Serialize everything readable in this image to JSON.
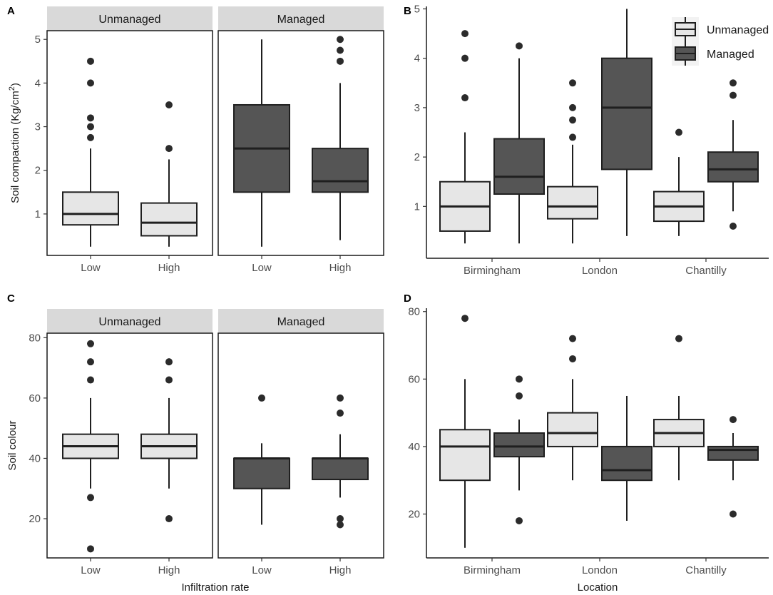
{
  "chart_data": [
    {
      "id": "A",
      "type": "box",
      "panel_tag": "A",
      "ylabel": "Soil compaction (Kg/cm",
      "ylabel_sup": "2",
      "ylabel_close": ")",
      "ylim": [
        0.05,
        5.2
      ],
      "yticks": [
        1,
        2,
        3,
        4,
        5
      ],
      "xlabel": "",
      "facets": [
        {
          "label": "Unmanaged",
          "fill": "#e6e6e6",
          "categories": [
            "Low",
            "High"
          ],
          "boxes": [
            {
              "q1": 0.75,
              "median": 1.0,
              "q3": 1.5,
              "lo": 0.25,
              "hi": 2.5,
              "outliers": [
                2.75,
                3.0,
                3.2,
                4.0,
                4.5
              ]
            },
            {
              "q1": 0.5,
              "median": 0.8,
              "q3": 1.25,
              "lo": 0.25,
              "hi": 2.25,
              "outliers": [
                2.5,
                3.5
              ]
            }
          ]
        },
        {
          "label": "Managed",
          "fill": "#555555",
          "categories": [
            "Low",
            "High"
          ],
          "boxes": [
            {
              "q1": 1.5,
              "median": 2.5,
              "q3": 3.5,
              "lo": 0.25,
              "hi": 5.0,
              "outliers": []
            },
            {
              "q1": 1.5,
              "median": 1.75,
              "q3": 2.5,
              "lo": 0.4,
              "hi": 4.0,
              "outliers": [
                4.5,
                4.75,
                5.0
              ]
            }
          ]
        }
      ]
    },
    {
      "id": "B",
      "type": "box",
      "panel_tag": "B",
      "ylabel": "",
      "ylim": [
        -0.05,
        5.05
      ],
      "yticks": [
        1,
        2,
        3,
        4,
        5
      ],
      "xlabel": "",
      "categories": [
        "Birmingham",
        "London",
        "Chantilly"
      ],
      "series": [
        {
          "name": "Unmanaged",
          "fill": "#e6e6e6",
          "boxes": [
            {
              "q1": 0.5,
              "median": 1.0,
              "q3": 1.5,
              "lo": 0.25,
              "hi": 2.5,
              "outliers": [
                3.2,
                4.0,
                4.5
              ]
            },
            {
              "q1": 0.75,
              "median": 1.0,
              "q3": 1.4,
              "lo": 0.25,
              "hi": 2.25,
              "outliers": [
                2.4,
                2.75,
                3.0,
                3.5
              ]
            },
            {
              "q1": 0.7,
              "median": 1.0,
              "q3": 1.3,
              "lo": 0.4,
              "hi": 2.0,
              "outliers": [
                2.5
              ]
            }
          ]
        },
        {
          "name": "Managed",
          "fill": "#555555",
          "boxes": [
            {
              "q1": 1.25,
              "median": 1.6,
              "q3": 2.37,
              "lo": 0.25,
              "hi": 4.0,
              "outliers": [
                4.25
              ]
            },
            {
              "q1": 1.75,
              "median": 3.0,
              "q3": 4.0,
              "lo": 0.4,
              "hi": 5.0,
              "outliers": []
            },
            {
              "q1": 1.5,
              "median": 1.75,
              "q3": 2.1,
              "lo": 0.9,
              "hi": 2.75,
              "outliers": [
                0.6,
                3.25,
                3.5
              ]
            }
          ]
        }
      ],
      "legend": [
        "Unmanaged",
        "Managed"
      ],
      "legend_position": "top-right"
    },
    {
      "id": "C",
      "type": "box",
      "panel_tag": "C",
      "ylabel": "Soil colour",
      "ylim": [
        7,
        81.5
      ],
      "yticks": [
        20,
        40,
        60,
        80
      ],
      "xlabel": "Infiltration rate",
      "facets": [
        {
          "label": "Unmanaged",
          "fill": "#e6e6e6",
          "categories": [
            "Low",
            "High"
          ],
          "boxes": [
            {
              "q1": 40,
              "median": 44,
              "q3": 48,
              "lo": 30,
              "hi": 60,
              "outliers": [
                10,
                27,
                66,
                72,
                78
              ]
            },
            {
              "q1": 40,
              "median": 44,
              "q3": 48,
              "lo": 30,
              "hi": 60,
              "outliers": [
                20,
                66,
                72
              ]
            }
          ]
        },
        {
          "label": "Managed",
          "fill": "#555555",
          "categories": [
            "Low",
            "High"
          ],
          "boxes": [
            {
              "q1": 30,
              "median": 40,
              "q3": 40,
              "lo": 18,
              "hi": 45,
              "outliers": [
                60
              ]
            },
            {
              "q1": 33,
              "median": 40,
              "q3": 40,
              "lo": 27,
              "hi": 48,
              "outliers": [
                18,
                20,
                55,
                60
              ]
            }
          ]
        }
      ]
    },
    {
      "id": "D",
      "type": "box",
      "panel_tag": "D",
      "ylabel": "",
      "ylim": [
        7,
        81
      ],
      "yticks": [
        20,
        40,
        60,
        80
      ],
      "xlabel": "Location",
      "categories": [
        "Birmingham",
        "London",
        "Chantilly"
      ],
      "series": [
        {
          "name": "Unmanaged",
          "fill": "#e6e6e6",
          "boxes": [
            {
              "q1": 30,
              "median": 40,
              "q3": 45,
              "lo": 10,
              "hi": 60,
              "outliers": [
                78
              ]
            },
            {
              "q1": 40,
              "median": 44,
              "q3": 50,
              "lo": 30,
              "hi": 60,
              "outliers": [
                66,
                72
              ]
            },
            {
              "q1": 40,
              "median": 44,
              "q3": 48,
              "lo": 30,
              "hi": 55,
              "outliers": [
                72
              ]
            }
          ]
        },
        {
          "name": "Managed",
          "fill": "#555555",
          "boxes": [
            {
              "q1": 37,
              "median": 40,
              "q3": 44,
              "lo": 27,
              "hi": 48,
              "outliers": [
                18,
                55,
                60
              ]
            },
            {
              "q1": 30,
              "median": 33,
              "q3": 40,
              "lo": 18,
              "hi": 55,
              "outliers": []
            },
            {
              "q1": 36,
              "median": 39,
              "q3": 40,
              "lo": 30,
              "hi": 44,
              "outliers": [
                20,
                48
              ]
            }
          ]
        }
      ]
    }
  ]
}
